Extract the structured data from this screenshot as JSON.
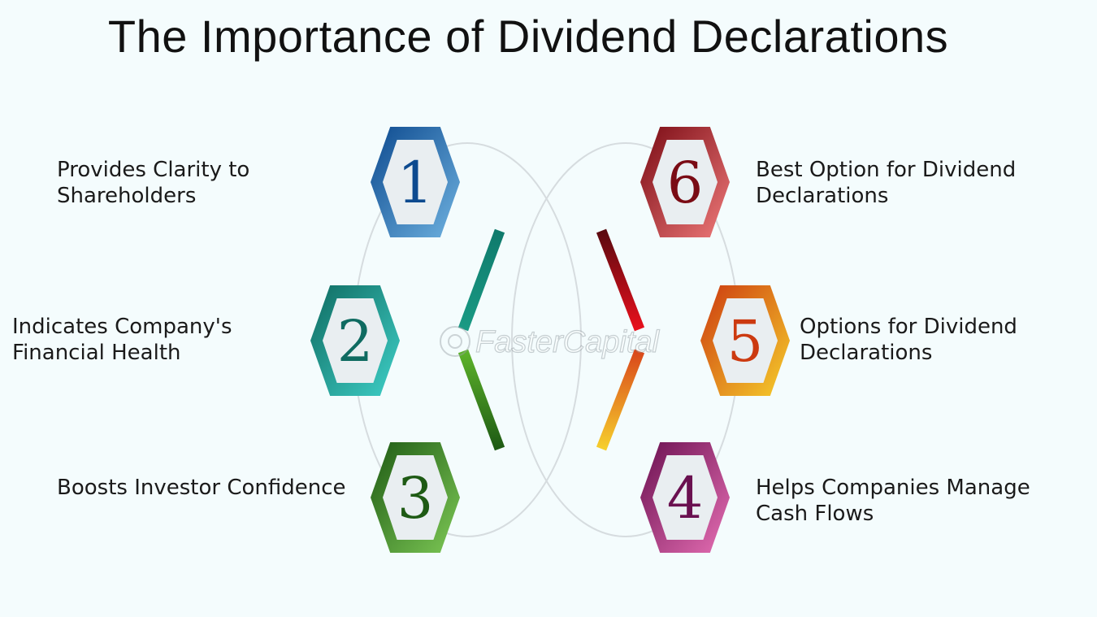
{
  "title": "The Importance of Dividend Declarations",
  "watermark": "FasterCapital",
  "steps": [
    {
      "number": "1",
      "line1": "Provides Clarity to",
      "line2": "Shareholders",
      "color_dark": "#0d4a8f",
      "color_light": "#6fb2e0"
    },
    {
      "number": "2",
      "line1": "Indicates Company's",
      "line2": "Financial Health",
      "color_dark": "#0f6b61",
      "color_light": "#3fd0c8"
    },
    {
      "number": "3",
      "line1": "Boosts Investor Confidence",
      "line2": "",
      "color_dark": "#1e5a14",
      "color_light": "#7ec956"
    },
    {
      "number": "4",
      "line1": "Helps Companies Manage",
      "line2": "Cash Flows",
      "color_dark": "#6a1050",
      "color_light": "#e66fb4"
    },
    {
      "number": "5",
      "line1": "Options for Dividend",
      "line2": "Declarations",
      "color_dark": "#cc3a10",
      "color_light": "#f6cf2c"
    },
    {
      "number": "6",
      "line1": "Best Option for Dividend",
      "line2": "Declarations",
      "color_dark": "#7a0b14",
      "color_light": "#ef7a7a"
    }
  ]
}
